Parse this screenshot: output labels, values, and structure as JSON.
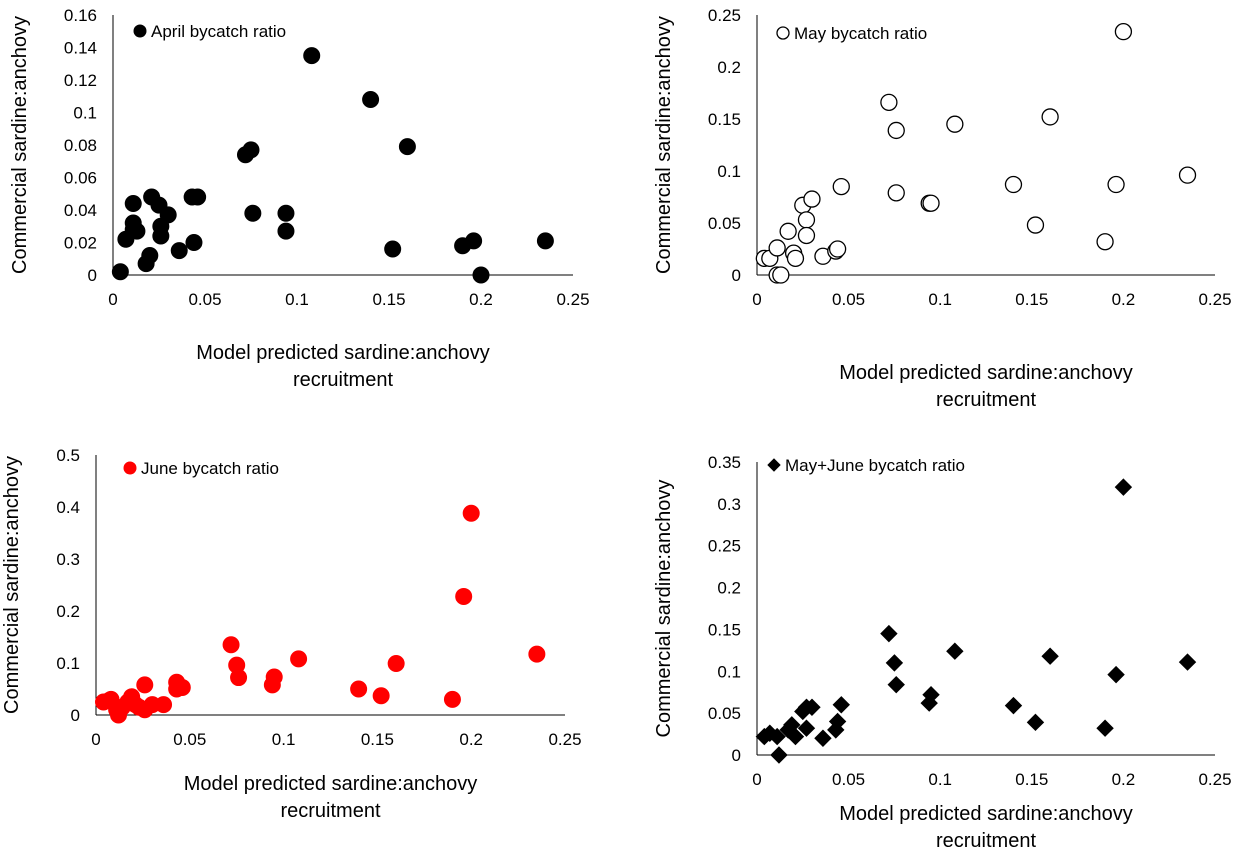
{
  "chart_data": [
    {
      "type": "scatter",
      "xlabel": [
        "Model predicted sardine:anchovy",
        "recruitment"
      ],
      "ylabel": "Commercial sardine:anchovy",
      "xlim": [
        0,
        0.25
      ],
      "ylim": [
        0,
        0.16
      ],
      "xticks": [
        "0",
        "0.05",
        "0.1",
        "0.15",
        "0.2",
        "0.25"
      ],
      "yticks": [
        "0",
        "0.02",
        "0.04",
        "0.06",
        "0.08",
        "0.1",
        "0.12",
        "0.14",
        "0.16"
      ],
      "legend": {
        "label": "April bycatch ratio",
        "position": "top-left"
      },
      "grid": false,
      "marker": {
        "shape": "circle",
        "fill": "#000000",
        "stroke": "#000000"
      },
      "series": [
        {
          "name": "April bycatch ratio",
          "points": [
            [
              0.004,
              0.002
            ],
            [
              0.007,
              0.022
            ],
            [
              0.011,
              0.044
            ],
            [
              0.011,
              0.032
            ],
            [
              0.011,
              0.028
            ],
            [
              0.013,
              0.027
            ],
            [
              0.018,
              0.007
            ],
            [
              0.02,
              0.012
            ],
            [
              0.021,
              0.048
            ],
            [
              0.025,
              0.043
            ],
            [
              0.026,
              0.024
            ],
            [
              0.026,
              0.03
            ],
            [
              0.03,
              0.037
            ],
            [
              0.036,
              0.015
            ],
            [
              0.043,
              0.048
            ],
            [
              0.044,
              0.02
            ],
            [
              0.046,
              0.048
            ],
            [
              0.072,
              0.074
            ],
            [
              0.075,
              0.077
            ],
            [
              0.076,
              0.038
            ],
            [
              0.094,
              0.038
            ],
            [
              0.094,
              0.027
            ],
            [
              0.108,
              0.135
            ],
            [
              0.14,
              0.108
            ],
            [
              0.152,
              0.016
            ],
            [
              0.16,
              0.079
            ],
            [
              0.19,
              0.018
            ],
            [
              0.196,
              0.021
            ],
            [
              0.2,
              0.0
            ],
            [
              0.235,
              0.021
            ]
          ]
        }
      ]
    },
    {
      "type": "scatter",
      "xlabel": [
        "Model predicted sardine:anchovy",
        "recruitment"
      ],
      "ylabel": "Commercial sardine:anchovy",
      "xlim": [
        0,
        0.25
      ],
      "ylim": [
        0,
        0.25
      ],
      "xticks": [
        "0",
        "0.05",
        "0.1",
        "0.15",
        "0.2",
        "0.25"
      ],
      "yticks": [
        "0",
        "0.05",
        "0.1",
        "0.15",
        "0.2",
        "0.25"
      ],
      "legend": {
        "label": "May bycatch ratio",
        "position": "top-left"
      },
      "grid": false,
      "marker": {
        "shape": "circle",
        "fill": "#ffffff",
        "stroke": "#000000"
      },
      "series": [
        {
          "name": "May bycatch ratio",
          "points": [
            [
              0.004,
              0.016
            ],
            [
              0.007,
              0.016
            ],
            [
              0.011,
              0.026
            ],
            [
              0.011,
              0.0
            ],
            [
              0.013,
              0.0
            ],
            [
              0.017,
              0.042
            ],
            [
              0.02,
              0.021
            ],
            [
              0.021,
              0.016
            ],
            [
              0.025,
              0.067
            ],
            [
              0.027,
              0.053
            ],
            [
              0.027,
              0.038
            ],
            [
              0.03,
              0.073
            ],
            [
              0.036,
              0.018
            ],
            [
              0.043,
              0.023
            ],
            [
              0.044,
              0.025
            ],
            [
              0.046,
              0.085
            ],
            [
              0.072,
              0.166
            ],
            [
              0.076,
              0.139
            ],
            [
              0.076,
              0.079
            ],
            [
              0.094,
              0.069
            ],
            [
              0.095,
              0.069
            ],
            [
              0.108,
              0.145
            ],
            [
              0.14,
              0.087
            ],
            [
              0.152,
              0.048
            ],
            [
              0.16,
              0.152
            ],
            [
              0.19,
              0.032
            ],
            [
              0.196,
              0.087
            ],
            [
              0.2,
              0.234
            ],
            [
              0.235,
              0.096
            ]
          ]
        }
      ]
    },
    {
      "type": "scatter",
      "xlabel": [
        "Model predicted sardine:anchovy",
        "recruitment"
      ],
      "ylabel": "Commercial sardine:anchovy",
      "xlim": [
        0,
        0.25
      ],
      "ylim": [
        0,
        0.5
      ],
      "xticks": [
        "0",
        "0.05",
        "0.1",
        "0.15",
        "0.2",
        "0.25"
      ],
      "yticks": [
        "0",
        "0.1",
        "0.2",
        "0.3",
        "0.4",
        "0.5"
      ],
      "legend": {
        "label": "June bycatch ratio",
        "position": "top-left"
      },
      "grid": false,
      "marker": {
        "shape": "circle",
        "fill": "#ff0000",
        "stroke": "#ff0000"
      },
      "series": [
        {
          "name": "June bycatch ratio",
          "points": [
            [
              0.004,
              0.025
            ],
            [
              0.007,
              0.028
            ],
            [
              0.008,
              0.03
            ],
            [
              0.011,
              0.01
            ],
            [
              0.012,
              0.0
            ],
            [
              0.014,
              0.015
            ],
            [
              0.017,
              0.025
            ],
            [
              0.019,
              0.035
            ],
            [
              0.021,
              0.02
            ],
            [
              0.023,
              0.015
            ],
            [
              0.026,
              0.058
            ],
            [
              0.026,
              0.01
            ],
            [
              0.03,
              0.02
            ],
            [
              0.036,
              0.02
            ],
            [
              0.043,
              0.063
            ],
            [
              0.043,
              0.05
            ],
            [
              0.046,
              0.053
            ],
            [
              0.072,
              0.135
            ],
            [
              0.075,
              0.096
            ],
            [
              0.076,
              0.072
            ],
            [
              0.094,
              0.058
            ],
            [
              0.095,
              0.073
            ],
            [
              0.108,
              0.108
            ],
            [
              0.14,
              0.05
            ],
            [
              0.152,
              0.037
            ],
            [
              0.16,
              0.099
            ],
            [
              0.19,
              0.03
            ],
            [
              0.196,
              0.228
            ],
            [
              0.2,
              0.388
            ],
            [
              0.235,
              0.117
            ]
          ]
        }
      ]
    },
    {
      "type": "scatter",
      "xlabel": [
        "Model predicted sardine:anchovy",
        "recruitment"
      ],
      "ylabel": "Commercial sardine:anchovy",
      "xlim": [
        0,
        0.25
      ],
      "ylim": [
        0,
        0.35
      ],
      "xticks": [
        "0",
        "0.05",
        "0.1",
        "0.15",
        "0.2",
        "0.25"
      ],
      "yticks": [
        "0",
        "0.05",
        "0.1",
        "0.15",
        "0.2",
        "0.25",
        "0.3",
        "0.35"
      ],
      "legend": {
        "label": "May+June bycatch ratio",
        "position": "top-left"
      },
      "grid": false,
      "marker": {
        "shape": "diamond",
        "fill": "#000000",
        "stroke": "#000000"
      },
      "series": [
        {
          "name": "May+June bycatch ratio",
          "points": [
            [
              0.004,
              0.022
            ],
            [
              0.007,
              0.026
            ],
            [
              0.011,
              0.022
            ],
            [
              0.012,
              0.0
            ],
            [
              0.017,
              0.03
            ],
            [
              0.019,
              0.036
            ],
            [
              0.021,
              0.022
            ],
            [
              0.025,
              0.052
            ],
            [
              0.027,
              0.057
            ],
            [
              0.027,
              0.032
            ],
            [
              0.03,
              0.057
            ],
            [
              0.036,
              0.02
            ],
            [
              0.043,
              0.03
            ],
            [
              0.044,
              0.04
            ],
            [
              0.046,
              0.06
            ],
            [
              0.072,
              0.145
            ],
            [
              0.075,
              0.11
            ],
            [
              0.076,
              0.084
            ],
            [
              0.094,
              0.062
            ],
            [
              0.095,
              0.072
            ],
            [
              0.108,
              0.124
            ],
            [
              0.14,
              0.059
            ],
            [
              0.152,
              0.039
            ],
            [
              0.16,
              0.118
            ],
            [
              0.19,
              0.032
            ],
            [
              0.196,
              0.096
            ],
            [
              0.2,
              0.32
            ],
            [
              0.235,
              0.111
            ]
          ]
        }
      ]
    }
  ]
}
